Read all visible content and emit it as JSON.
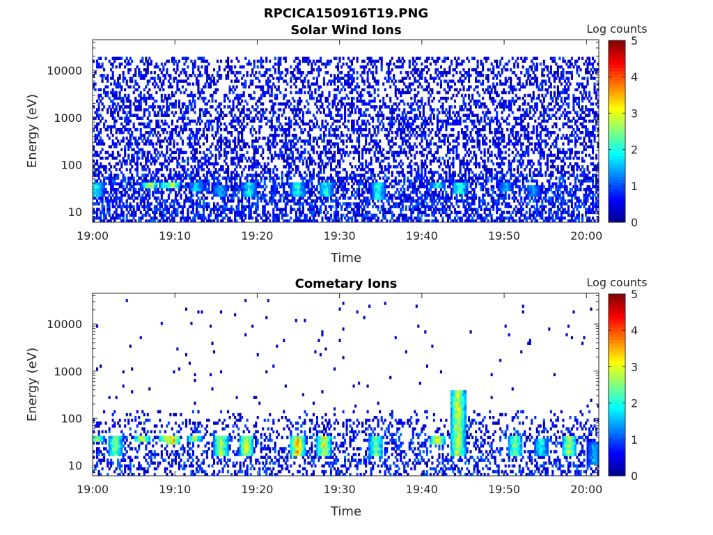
{
  "figure": {
    "title": "RPCICA150916T19.PNG"
  },
  "colors": {
    "colormap": [
      "#00008f",
      "#0000ff",
      "#0080ff",
      "#00ffff",
      "#80ff80",
      "#ffff00",
      "#ff8000",
      "#ff0000",
      "#800000"
    ],
    "axis": "#262626",
    "background": "#ffffff"
  },
  "chart_data": [
    {
      "type": "heatmap",
      "title": "Solar Wind Ions",
      "xlabel": "Time",
      "ylabel": "Energy (eV)",
      "x_tick_labels": [
        "19:00",
        "19:10",
        "19:20",
        "19:30",
        "19:40",
        "19:50",
        "20:00"
      ],
      "x_tick_minutes": [
        0,
        10,
        20,
        30,
        40,
        50,
        60
      ],
      "xlim_minutes": [
        0,
        61.5
      ],
      "y_scale": "log",
      "ylim": [
        6,
        45000
      ],
      "y_tick_labels": [
        "10",
        "100",
        "1000",
        "10000"
      ],
      "y_tick_values": [
        10,
        100,
        1000,
        10000
      ],
      "colorbar": {
        "label": "Log counts",
        "range": [
          0,
          5
        ],
        "tick_labels": [
          "0",
          "1",
          "2",
          "3",
          "4",
          "5"
        ]
      },
      "background_noise": {
        "energy_range_eV": [
          6,
          20000
        ],
        "level_log_counts": [
          0,
          1
        ],
        "density": "dense"
      },
      "features": [
        {
          "time_min": 0.3,
          "energy_eV": [
            20,
            40
          ],
          "peak_log_counts": 2.0
        },
        {
          "time_min": 6.8,
          "energy_eV": [
            30,
            45
          ],
          "peak_log_counts": 3.0
        },
        {
          "time_min": 8.8,
          "energy_eV": [
            30,
            45
          ],
          "peak_log_counts": 2.2
        },
        {
          "time_min": 9.6,
          "energy_eV": [
            30,
            45
          ],
          "peak_log_counts": 2.8
        },
        {
          "time_min": 12.5,
          "energy_eV": [
            28,
            42
          ],
          "peak_log_counts": 1.8
        },
        {
          "time_min": 15.4,
          "energy_eV": [
            20,
            35
          ],
          "peak_log_counts": 1.7
        },
        {
          "time_min": 18.9,
          "energy_eV": [
            20,
            40
          ],
          "peak_log_counts": 2.0
        },
        {
          "time_min": 24.8,
          "energy_eV": [
            20,
            40
          ],
          "peak_log_counts": 2.0
        },
        {
          "time_min": 28.3,
          "energy_eV": [
            20,
            40
          ],
          "peak_log_counts": 2.0
        },
        {
          "time_min": 34.6,
          "energy_eV": [
            18,
            40
          ],
          "peak_log_counts": 2.0
        },
        {
          "time_min": 41.8,
          "energy_eV": [
            30,
            45
          ],
          "peak_log_counts": 2.0
        },
        {
          "time_min": 44.5,
          "energy_eV": [
            25,
            45
          ],
          "peak_log_counts": 2.2
        },
        {
          "time_min": 50.1,
          "energy_eV": [
            28,
            40
          ],
          "peak_log_counts": 1.5
        },
        {
          "time_min": 53.5,
          "energy_eV": [
            20,
            35
          ],
          "peak_log_counts": 1.5
        }
      ]
    },
    {
      "type": "heatmap",
      "title": "Cometary Ions",
      "xlabel": "Time",
      "ylabel": "Energy (eV)",
      "x_tick_labels": [
        "19:00",
        "19:10",
        "19:20",
        "19:30",
        "19:40",
        "19:50",
        "20:00"
      ],
      "x_tick_minutes": [
        0,
        10,
        20,
        30,
        40,
        50,
        60
      ],
      "xlim_minutes": [
        0,
        61.5
      ],
      "y_scale": "log",
      "ylim": [
        6,
        45000
      ],
      "y_tick_labels": [
        "10",
        "100",
        "1000",
        "10000"
      ],
      "y_tick_values": [
        10,
        100,
        1000,
        10000
      ],
      "colorbar": {
        "label": "Log counts",
        "range": [
          0,
          5
        ],
        "tick_labels": [
          "0",
          "1",
          "2",
          "3",
          "4",
          "5"
        ]
      },
      "background_noise": {
        "energy_range_eV": [
          6,
          150
        ],
        "level_log_counts": [
          0,
          1
        ],
        "density": "moderate",
        "sparse_points_up_to_eV": 35000
      },
      "features": [
        {
          "time_min": 0.4,
          "energy_eV": [
            30,
            42
          ],
          "peak_log_counts": 2.8
        },
        {
          "time_min": 2.7,
          "energy_eV": [
            15,
            40
          ],
          "peak_log_counts": 2.5
        },
        {
          "time_min": 5.9,
          "energy_eV": [
            30,
            42
          ],
          "peak_log_counts": 3.2
        },
        {
          "time_min": 8.8,
          "energy_eV": [
            30,
            42
          ],
          "peak_log_counts": 3.0
        },
        {
          "time_min": 9.6,
          "energy_eV": [
            28,
            42
          ],
          "peak_log_counts": 3.5
        },
        {
          "time_min": 12.3,
          "energy_eV": [
            30,
            42
          ],
          "peak_log_counts": 2.8
        },
        {
          "time_min": 15.5,
          "energy_eV": [
            15,
            40
          ],
          "peak_log_counts": 2.8
        },
        {
          "time_min": 18.6,
          "energy_eV": [
            15,
            40
          ],
          "peak_log_counts": 3.0
        },
        {
          "time_min": 24.8,
          "energy_eV": [
            15,
            40
          ],
          "peak_log_counts": 3.5
        },
        {
          "time_min": 28.0,
          "energy_eV": [
            15,
            40
          ],
          "peak_log_counts": 3.0
        },
        {
          "time_min": 34.3,
          "energy_eV": [
            15,
            40
          ],
          "peak_log_counts": 2.5
        },
        {
          "time_min": 41.8,
          "energy_eV": [
            28,
            42
          ],
          "peak_log_counts": 3.2
        },
        {
          "time_min": 44.3,
          "energy_eV": [
            15,
            400
          ],
          "peak_log_counts": 3.0
        },
        {
          "time_min": 51.2,
          "energy_eV": [
            15,
            40
          ],
          "peak_log_counts": 2.5
        },
        {
          "time_min": 54.4,
          "energy_eV": [
            15,
            35
          ],
          "peak_log_counts": 2.0
        },
        {
          "time_min": 57.8,
          "energy_eV": [
            15,
            40
          ],
          "peak_log_counts": 2.8
        },
        {
          "time_min": 60.8,
          "energy_eV": [
            10,
            30
          ],
          "peak_log_counts": 1.5
        }
      ]
    }
  ]
}
